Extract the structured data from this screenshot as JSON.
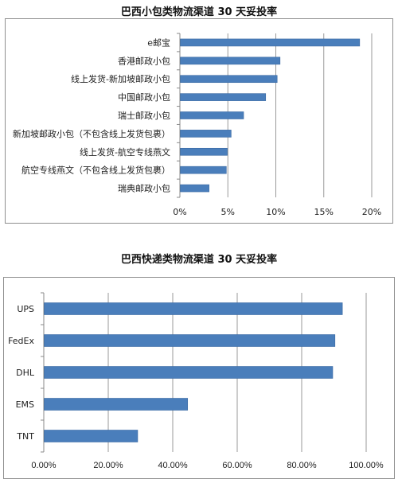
{
  "chart_data": [
    {
      "type": "bar",
      "orientation": "horizontal",
      "title": "巴西小包类物流渠道 30 天妥投率",
      "categories": [
        "e邮宝",
        "香港邮政小包",
        "线上发货-新加坡邮政小包",
        "中国邮政小包",
        "瑞士邮政小包",
        "新加坡邮政小包（不包含线上发货包裹）",
        "线上发货-航空专线燕文",
        "航空专线燕文（不包含线上发货包裹）",
        "瑞典邮政小包"
      ],
      "values": [
        18.7,
        10.4,
        10.1,
        8.9,
        6.6,
        5.3,
        4.9,
        4.8,
        3.0
      ],
      "xlim": [
        0,
        20
      ],
      "xticks": [
        "0%",
        "5%",
        "10%",
        "15%",
        "20%"
      ],
      "grid": "vertical",
      "bar_color": "#4a7ebb"
    },
    {
      "type": "bar",
      "orientation": "horizontal",
      "title": "巴西快递类物流渠道 30 天妥投率",
      "categories": [
        "UPS",
        "FedEx",
        "DHL",
        "EMS",
        "TNT"
      ],
      "values": [
        92.5,
        90.2,
        89.5,
        44.5,
        29.0
      ],
      "xlim": [
        0,
        100
      ],
      "xticks": [
        "0.00%",
        "20.00%",
        "40.00%",
        "60.00%",
        "80.00%",
        "100.00%"
      ],
      "grid": "vertical",
      "bar_color": "#4a7ebb"
    }
  ]
}
